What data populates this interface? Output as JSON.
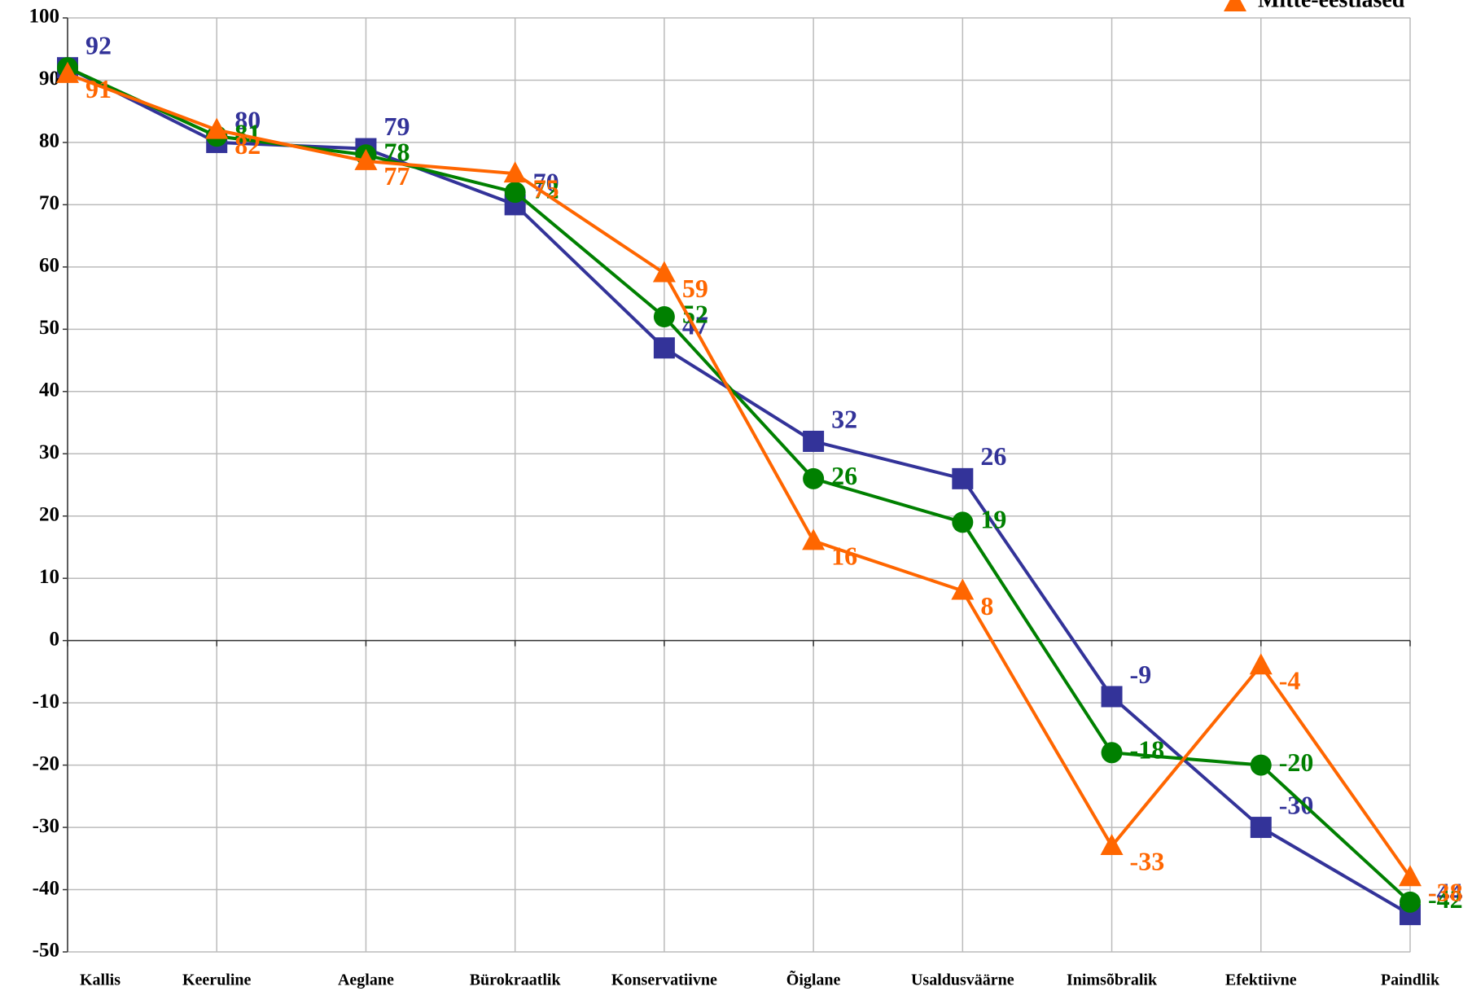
{
  "chart_data": {
    "type": "line",
    "categories": [
      "Kallis",
      "Keeruline",
      "Aeglane",
      "Bürokraatlik",
      "Konservatiivne",
      "Õiglane",
      "Usaldusväärne",
      "Inimsõbralik",
      "Efektiivne",
      "Paindlik"
    ],
    "series": [
      {
        "color": "#333399",
        "marker": "square",
        "values": [
          92,
          80,
          79,
          70,
          47,
          32,
          26,
          -9,
          -30,
          -44
        ]
      },
      {
        "color": "#008000",
        "marker": "circle",
        "values": [
          92,
          81,
          78,
          72,
          52,
          26,
          19,
          -18,
          -20,
          -42
        ],
        "value_labels": [
          null,
          "81",
          "78",
          "72",
          "52",
          "26",
          "19",
          "-18",
          "-20",
          "-42"
        ]
      },
      {
        "name": "Mitte-eestlased",
        "color": "#ff6600",
        "marker": "triangle",
        "values": [
          91,
          82,
          77,
          75,
          59,
          16,
          8,
          -33,
          -4,
          -38
        ]
      }
    ],
    "ylim": [
      -50,
      100
    ],
    "yticks": [
      -50,
      -40,
      -30,
      -20,
      -10,
      0,
      10,
      20,
      30,
      40,
      50,
      60,
      70,
      80,
      90,
      100
    ],
    "grid": true
  }
}
